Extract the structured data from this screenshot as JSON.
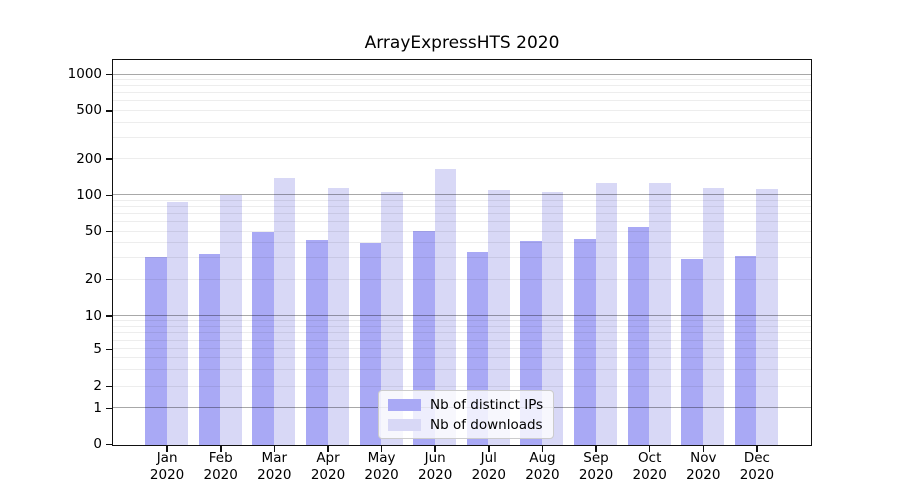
{
  "chart_data": {
    "type": "bar",
    "title": "ArrayExpressHTS 2020",
    "categories": [
      "Jan 2020",
      "Feb 2020",
      "Mar 2020",
      "Apr 2020",
      "May 2020",
      "Jun 2020",
      "Jul 2020",
      "Aug 2020",
      "Sep 2020",
      "Oct 2020",
      "Nov 2020",
      "Dec 2020"
    ],
    "series": [
      {
        "name": "Nb of distinct IPs",
        "color": "#a9a9f5",
        "values": [
          31,
          33,
          50,
          43,
          41,
          51,
          34,
          42,
          44,
          55,
          30,
          32
        ]
      },
      {
        "name": "Nb of downloads",
        "color": "#d8d8f6",
        "values": [
          89,
          102,
          140,
          116,
          107,
          166,
          111,
          107,
          129,
          127,
          116,
          113
        ]
      }
    ],
    "xlabel": "",
    "ylabel": "",
    "yscale": "log-like (symlog near zero)",
    "y_ticks": [
      1000,
      500,
      200,
      100,
      50,
      20,
      10,
      5,
      2,
      1,
      0
    ],
    "ylim": [
      0,
      1300
    ],
    "grid": "on (minor light lines, darker lines at 1/10/100/1000)",
    "legend_position": "lower center"
  }
}
